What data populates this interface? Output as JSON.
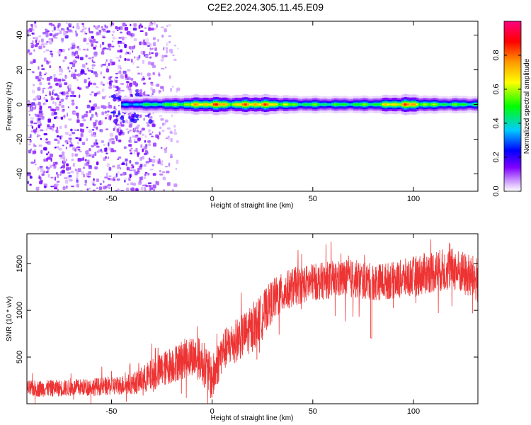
{
  "title": "C2E2.2024.305.11.45.E09",
  "chart_data": [
    {
      "type": "heatmap",
      "xlabel": "Height of straight line (km)",
      "ylabel": "Frequency (Hz)",
      "xlim": [
        -92,
        132
      ],
      "ylim": [
        -50,
        48
      ],
      "x_ticks": [
        -50,
        0,
        50,
        100
      ],
      "x_tick_labels": [
        "-50",
        "0",
        "50",
        "100"
      ],
      "y_ticks": [
        -40,
        -20,
        0,
        20,
        40
      ],
      "y_tick_labels": [
        "-40",
        "-20",
        "0",
        "20",
        "40"
      ],
      "colorbar": {
        "label": "Normalized spectral amplitude",
        "range": [
          0,
          1
        ],
        "ticks": [
          0.0,
          0.2,
          0.4,
          0.6,
          0.8
        ],
        "tick_labels": [
          "0.0",
          "0.2",
          "0.4",
          "0.6",
          "0.8"
        ],
        "colors": [
          "#ffffff",
          "#7f00ff",
          "#0000ff",
          "#00ffff",
          "#00ff00",
          "#ffff00",
          "#ff7f00",
          "#ff0000",
          "#ff0080"
        ]
      },
      "ridge": {
        "description_points_x": [
          -45,
          -35,
          -20,
          -10,
          0,
          10,
          20,
          30,
          40,
          60,
          80,
          95,
          110,
          132
        ],
        "center_freq_hz": [
          0,
          0,
          0,
          0,
          0,
          0,
          0,
          0,
          0,
          0,
          0,
          0,
          0,
          0
        ],
        "peak_amplitude": [
          0.35,
          0.45,
          0.55,
          0.7,
          0.85,
          0.7,
          0.85,
          0.75,
          0.55,
          0.5,
          0.55,
          0.85,
          0.55,
          0.5
        ]
      },
      "noise_region_x": [
        -92,
        -33
      ],
      "grid": false
    },
    {
      "type": "line",
      "xlabel": "Height of straight line (km)",
      "ylabel": "SNR (10 * v/v)",
      "xlim": [
        -92,
        132
      ],
      "ylim": [
        0,
        1820
      ],
      "x_ticks": [
        -50,
        0,
        50,
        100
      ],
      "x_tick_labels": [
        "-50",
        "0",
        "50",
        "100"
      ],
      "y_ticks": [
        500,
        1000,
        1500
      ],
      "y_tick_labels": [
        "500",
        "1000",
        "1500"
      ],
      "line_color": "#ee3333",
      "trend_x": [
        -92,
        -70,
        -50,
        -40,
        -30,
        -20,
        -10,
        -5,
        0,
        5,
        10,
        20,
        30,
        40,
        50,
        60,
        70,
        80,
        90,
        100,
        110,
        120,
        132
      ],
      "trend_y": [
        160,
        170,
        190,
        210,
        300,
        420,
        520,
        460,
        260,
        560,
        650,
        800,
        1110,
        1250,
        1300,
        1330,
        1340,
        1300,
        1320,
        1360,
        1420,
        1440,
        1320
      ],
      "noise_amplitude": [
        90,
        90,
        100,
        110,
        180,
        200,
        220,
        240,
        250,
        220,
        230,
        250,
        230,
        210,
        200,
        200,
        210,
        200,
        200,
        220,
        230,
        230,
        250
      ],
      "grid": false
    }
  ]
}
